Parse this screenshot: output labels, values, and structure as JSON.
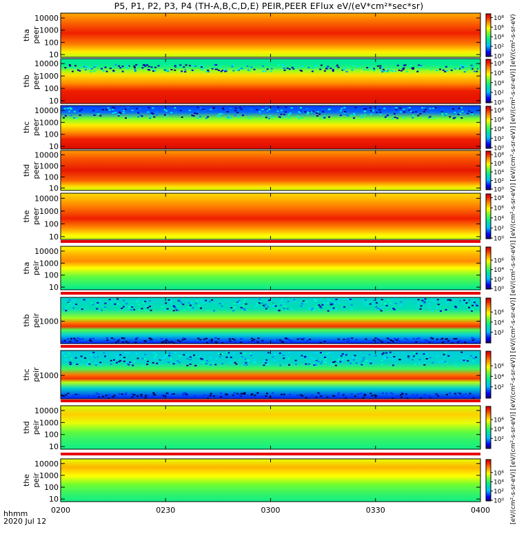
{
  "title": "P5, P1, P2, P3, P4 (TH-A,B,C,D,E) PEIR,PEER EFlux eV/(eV*cm²*sec*sr)",
  "footer": {
    "time_label": "hhmm",
    "date_label": "2020 Jul 12"
  },
  "colorbar_unit": "[eV/(cm²-s-sr-eV)] [eV/(cm²-s-sr-eV)] [eV/(cm²-s-sr-eV)] [eV/(cm²-s-sr-eV)] [eV/(cm²-s-sr-eV)] [eV/(cm²-s-sr-eV)] [eV/(cm²-s-sr-eV)] [eV/(cm²-s-sr-eV)] [eV/(cm²-s-sr-eV)] [eV/(cm²-s-sr-eV)] (4)",
  "chart_data": {
    "type": "heatmap",
    "x_tick_labels": [
      "0200",
      "0230",
      "0300",
      "0330",
      "0400"
    ],
    "xlim": [
      "0200",
      "0400"
    ],
    "colorscale": [
      "#ffffff",
      "#1a0070",
      "#0000ff",
      "#00c8ff",
      "#00ff80",
      "#ffff00",
      "#ff8000",
      "#e00000"
    ],
    "panels": [
      {
        "label_line1": "tha",
        "label_line2": "peer",
        "y_ticks": [
          "10000",
          "1000",
          "100",
          "10"
        ],
        "y_tick_values": [
          10000,
          1000,
          100,
          10
        ],
        "ylim": [
          6,
          25000
        ],
        "cbar_ticks": [
          "10⁸",
          "10⁶",
          "10⁴",
          "10²",
          "10⁰"
        ],
        "cbar_tick_values": [
          8,
          6,
          4,
          2,
          0
        ],
        "profile": "peer_a"
      },
      {
        "label_line1": "thb",
        "label_line2": "peer",
        "y_ticks": [
          "10000",
          "1000",
          "100",
          "10"
        ],
        "y_tick_values": [
          10000,
          1000,
          100,
          10
        ],
        "ylim": [
          6,
          25000
        ],
        "cbar_ticks": [
          "10⁸",
          "10⁶",
          "10⁴",
          "10²",
          "10⁰"
        ],
        "cbar_tick_values": [
          8,
          6,
          4,
          2,
          0
        ],
        "profile": "peer_b"
      },
      {
        "label_line1": "thc",
        "label_line2": "peer",
        "y_ticks": [
          "10000",
          "1000",
          "100",
          "10"
        ],
        "y_tick_values": [
          10000,
          1000,
          100,
          10
        ],
        "ylim": [
          6,
          25000
        ],
        "cbar_ticks": [
          "10⁸",
          "10⁶",
          "10⁴",
          "10²",
          "10⁰"
        ],
        "cbar_tick_values": [
          8,
          6,
          4,
          2,
          0
        ],
        "profile": "peer_c"
      },
      {
        "label_line1": "thd",
        "label_line2": "peer",
        "y_ticks": [
          "10000",
          "1000",
          "100",
          "10"
        ],
        "y_tick_values": [
          10000,
          1000,
          100,
          10
        ],
        "ylim": [
          6,
          25000
        ],
        "cbar_ticks": [
          "10⁸",
          "10⁶",
          "10⁴",
          "10²",
          "10⁰"
        ],
        "cbar_tick_values": [
          8,
          6,
          4,
          2,
          0
        ],
        "profile": "peer_d"
      },
      {
        "label_line1": "the",
        "label_line2": "peer",
        "y_ticks": [
          "10000",
          "1000",
          "100",
          "10"
        ],
        "y_tick_values": [
          10000,
          1000,
          100,
          10
        ],
        "ylim": [
          6,
          25000
        ],
        "cbar_ticks": [
          "10⁸",
          "10⁶",
          "10⁴",
          "10²",
          "10⁰"
        ],
        "cbar_tick_values": [
          8,
          6,
          4,
          2,
          0
        ],
        "profile": "peer_e"
      },
      {
        "label_line1": "tha",
        "label_line2": "peir",
        "y_ticks": [
          "10000",
          "1000",
          "100",
          "10"
        ],
        "y_tick_values": [
          10000,
          1000,
          100,
          10
        ],
        "ylim": [
          6,
          25000
        ],
        "cbar_ticks": [
          "10⁶",
          "10⁴",
          "10²",
          "10⁰"
        ],
        "cbar_tick_values": [
          6,
          4,
          2,
          0
        ],
        "profile": "peir_a"
      },
      {
        "label_line1": "thb",
        "label_line2": "peir",
        "y_ticks": [
          "1000"
        ],
        "y_tick_values": [
          1000
        ],
        "ylim": [
          60,
          20000
        ],
        "cbar_ticks": [
          "10⁶",
          "10⁴",
          "10²"
        ],
        "cbar_tick_values": [
          6,
          4,
          2
        ],
        "profile": "peir_b"
      },
      {
        "label_line1": "thc",
        "label_line2": "peir",
        "y_ticks": [
          "1000"
        ],
        "y_tick_values": [
          1000
        ],
        "ylim": [
          60,
          20000
        ],
        "cbar_ticks": [
          "10⁶",
          "10⁴",
          "10²"
        ],
        "cbar_tick_values": [
          6,
          4,
          2
        ],
        "profile": "peir_c"
      },
      {
        "label_line1": "thd",
        "label_line2": "peir",
        "y_ticks": [
          "10000",
          "1000",
          "100",
          "10"
        ],
        "y_tick_values": [
          10000,
          1000,
          100,
          10
        ],
        "ylim": [
          6,
          25000
        ],
        "cbar_ticks": [
          "10⁶",
          "10⁴",
          "10²"
        ],
        "cbar_tick_values": [
          6,
          4,
          2
        ],
        "profile": "peir_d"
      },
      {
        "label_line1": "the",
        "label_line2": "peir",
        "y_ticks": [
          "10000",
          "1000",
          "100",
          "10"
        ],
        "y_tick_values": [
          10000,
          1000,
          100,
          10
        ],
        "ylim": [
          6,
          25000
        ],
        "cbar_ticks": [
          "10⁶",
          "10⁴",
          "10²",
          "10⁰"
        ],
        "cbar_tick_values": [
          6,
          4,
          2,
          0
        ],
        "profile": "peir_e"
      }
    ]
  }
}
